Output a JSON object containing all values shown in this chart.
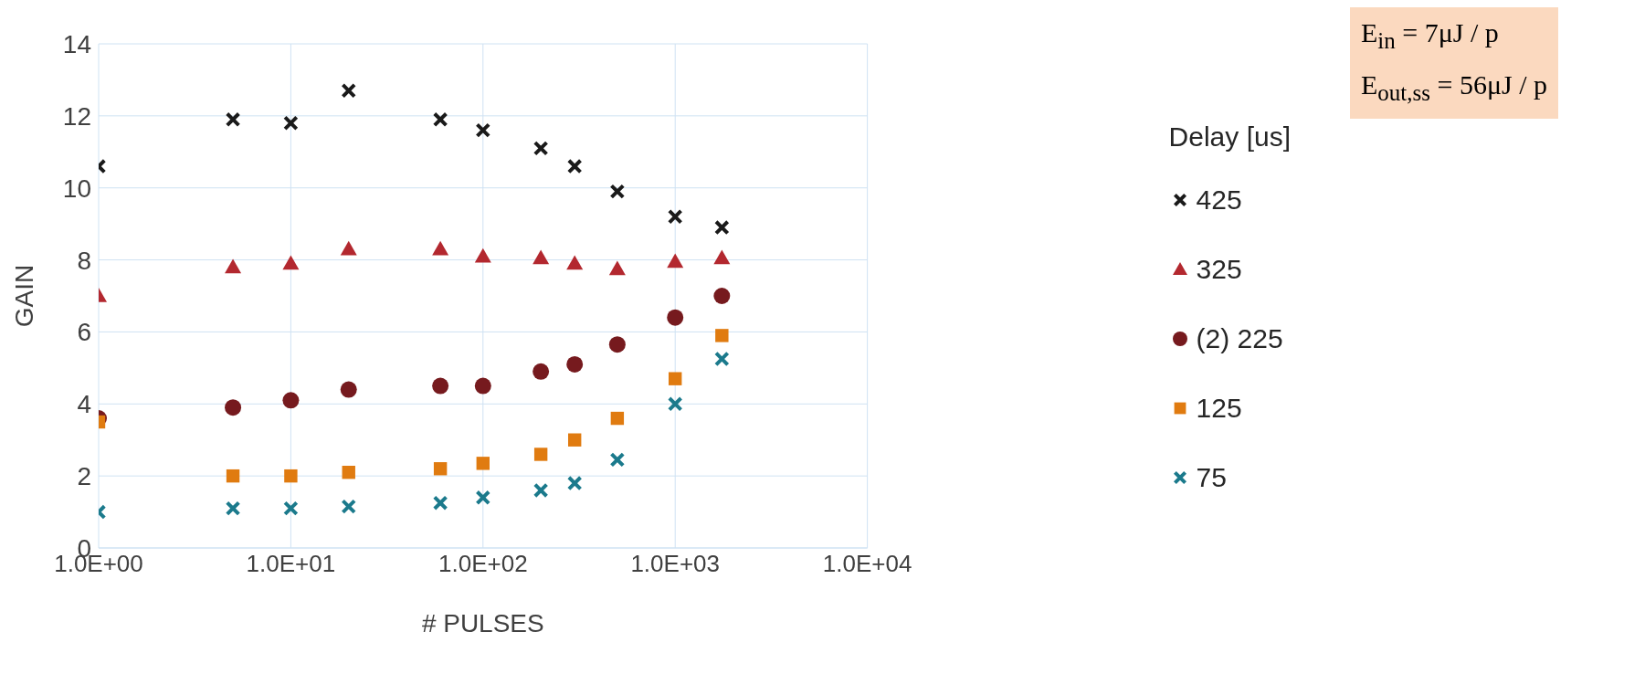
{
  "chart_data": {
    "type": "scatter",
    "xlabel": "# PULSES",
    "ylabel": "GAIN",
    "legend_title": "Delay [us]",
    "legend": "right",
    "grid": true,
    "log": "x",
    "annotations": [
      "E$_{in}$ = 7μJ / p",
      "E$_{out,ss}$ = 56μJ / p"
    ],
    "x": [
      1,
      5,
      10,
      20,
      60,
      100,
      200,
      300,
      500,
      1000,
      1750
    ],
    "xlim": [
      1,
      10000
    ],
    "xticks": [
      {
        "value": 1,
        "label": "1.0E+00"
      },
      {
        "value": 10,
        "label": "1.0E+01"
      },
      {
        "value": 100,
        "label": "1.0E+02"
      },
      {
        "value": 1000,
        "label": "1.0E+03"
      },
      {
        "value": 10000,
        "label": "1.0E+04"
      }
    ],
    "ylim": [
      0,
      14
    ],
    "yticks": [
      0,
      2,
      4,
      6,
      8,
      10,
      12,
      14
    ],
    "series": [
      {
        "name": "425",
        "color": "#1a1a1a",
        "marker": "cross",
        "values": [
          10.6,
          11.9,
          11.8,
          12.7,
          11.9,
          11.6,
          11.1,
          10.6,
          9.9,
          9.2,
          8.9
        ]
      },
      {
        "name": "325",
        "color": "#b3282f",
        "marker": "triangle",
        "values": [
          7.0,
          7.8,
          7.9,
          8.3,
          8.3,
          8.1,
          8.05,
          7.9,
          7.75,
          7.95,
          8.05
        ]
      },
      {
        "name": "(2) 225",
        "color": "#761a1e",
        "marker": "circle",
        "values": [
          3.6,
          3.9,
          4.1,
          4.4,
          4.5,
          4.5,
          4.9,
          5.1,
          5.65,
          6.4,
          7.0
        ]
      },
      {
        "name": "125",
        "color": "#e07b10",
        "marker": "square",
        "values": [
          3.5,
          2.0,
          2.0,
          2.1,
          2.2,
          2.35,
          2.6,
          3.0,
          3.6,
          4.7,
          5.9
        ]
      },
      {
        "name": "75",
        "color": "#1b7a8c",
        "marker": "cross",
        "values": [
          1.0,
          1.1,
          1.1,
          1.15,
          1.25,
          1.4,
          1.6,
          1.8,
          2.45,
          4.0,
          5.25
        ]
      }
    ]
  }
}
